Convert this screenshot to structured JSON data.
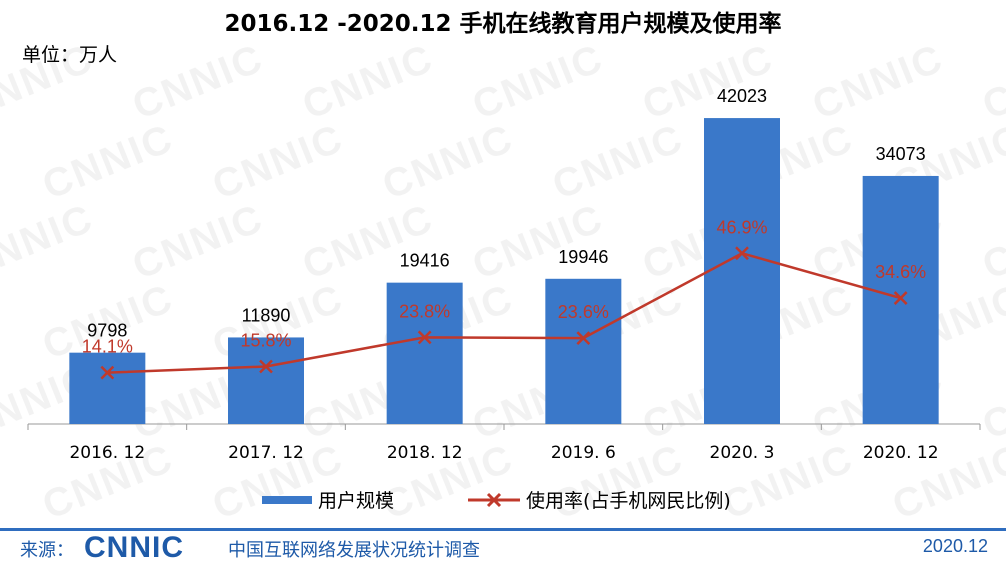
{
  "chart_data": {
    "type": "bar",
    "title": "2016.12 -2020.12 手机在线教育用户规模及使用率",
    "unit_label": "单位：万人",
    "categories": [
      "2016. 12",
      "2017. 12",
      "2018. 12",
      "2019. 6",
      "2020. 3",
      "2020. 12"
    ],
    "series": [
      {
        "name": "用户规模",
        "type": "bar",
        "values": [
          9798,
          11890,
          19416,
          19946,
          42023,
          34073
        ],
        "color": "#3a78c9"
      },
      {
        "name": "使用率(占手机网民比例)",
        "type": "line",
        "values": [
          14.1,
          15.8,
          23.8,
          23.6,
          46.9,
          34.6
        ],
        "labels": [
          "14.1%",
          "15.8%",
          "23.8%",
          "23.6%",
          "46.9%",
          "34.6%"
        ],
        "color": "#c0392b"
      }
    ],
    "bar_labels": [
      "9798",
      "11890",
      "19416",
      "19946",
      "42023",
      "34073"
    ],
    "ylim": [
      0,
      50000
    ],
    "rate_ylim": [
      0,
      100
    ],
    "grid": false,
    "legend_position": "bottom"
  },
  "watermark": "CNNIC",
  "footer": {
    "source_label": "来源：",
    "logo": "CNNIC",
    "org": "中国互联网络发展状况统计调查",
    "date": "2020.12"
  }
}
